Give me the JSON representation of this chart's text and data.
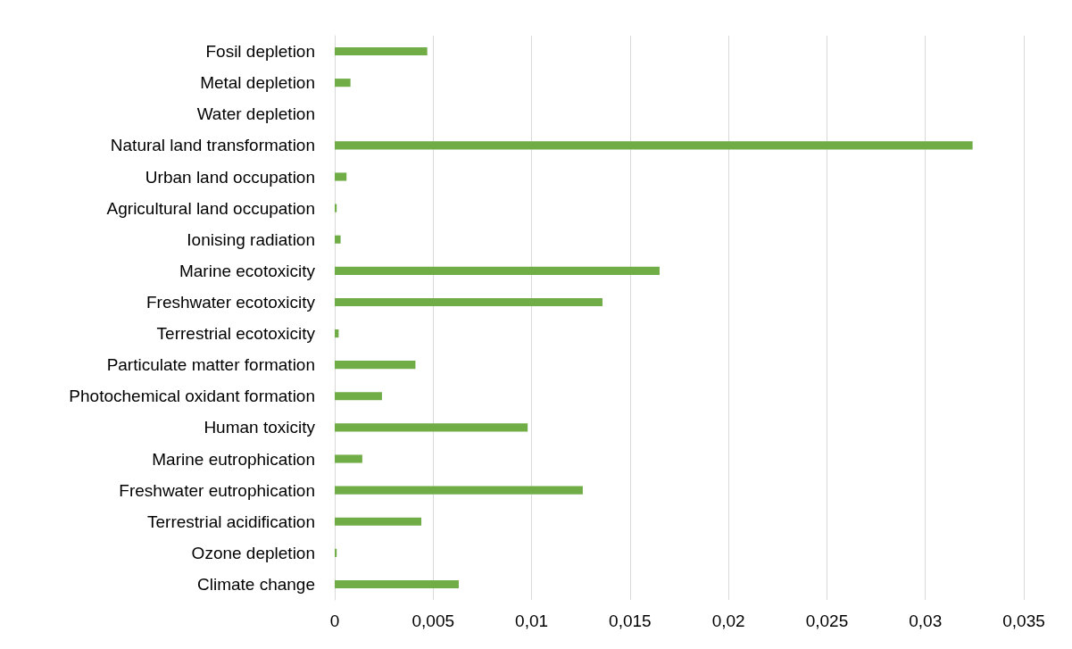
{
  "chart_data": {
    "type": "bar",
    "orientation": "horizontal",
    "categories": [
      "Fosil depletion",
      "Metal depletion",
      "Water depletion",
      "Natural land transformation",
      "Urban land occupation",
      "Agricultural land occupation",
      "Ionising radiation",
      "Marine ecotoxicity",
      "Freshwater ecotoxicity",
      "Terrestrial ecotoxicity",
      "Particulate matter formation",
      "Photochemical oxidant formation",
      "Human toxicity",
      "Marine eutrophication",
      "Freshwater eutrophication",
      "Terrestrial acidification",
      "Ozone depletion",
      "Climate change"
    ],
    "values": [
      0.0047,
      0.0008,
      0,
      0.0324,
      0.0006,
      0.0001,
      0.0003,
      0.0165,
      0.0136,
      0.0002,
      0.0041,
      0.0024,
      0.0098,
      0.0014,
      0.0126,
      0.0044,
      0.0001,
      0.0063
    ],
    "color": "#70ad47",
    "xlim": [
      0,
      0.035
    ],
    "xticks": [
      0,
      {
        "value": 0.005,
        "label": "0,005"
      },
      {
        "value": 0.01,
        "label": "0,01"
      },
      {
        "value": 0.015,
        "label": "0,015"
      },
      {
        "value": 0.02,
        "label": "0,02"
      },
      {
        "value": 0.025,
        "label": "0,025"
      },
      {
        "value": 0.03,
        "label": "0,03"
      },
      {
        "value": 0.035,
        "label": "0,035"
      }
    ],
    "grid": "x"
  }
}
